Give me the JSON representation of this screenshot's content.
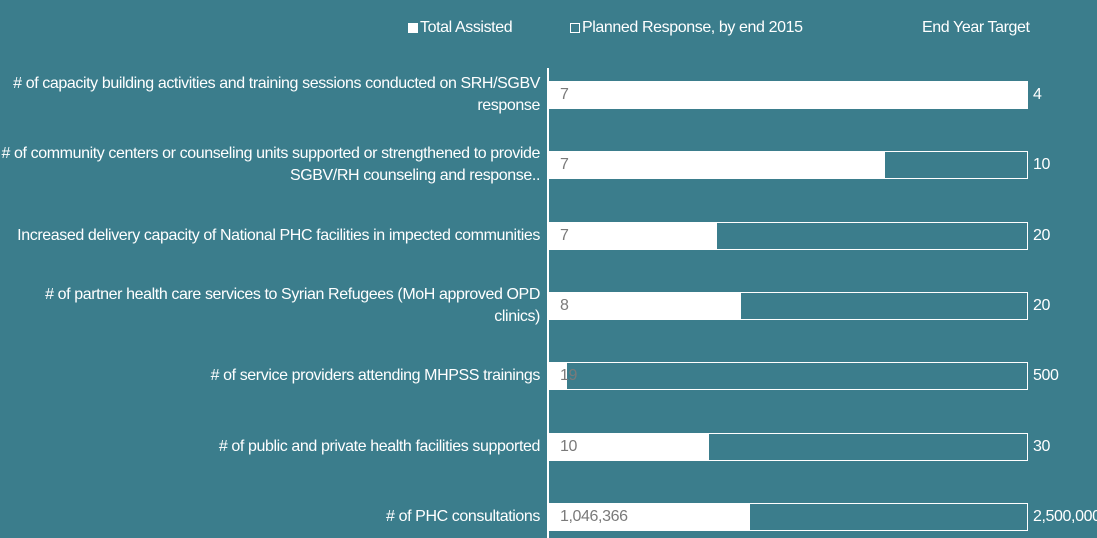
{
  "chart_data": {
    "type": "progress-bar",
    "categories": [
      "# of capacity building activities and training sessions conducted on SRH/SGBV response",
      "# of community centers or counseling units supported or strengthened to provide SGBV/RH counseling and response..",
      "Increased delivery capacity of National PHC facilities in impected communities",
      "# of partner health care services to Syrian Refugees  (MoH approved OPD clinics)",
      "# of service providers attending MHPSS trainings",
      "# of  public and private health facilities supported",
      "# of PHC consultations"
    ],
    "series": [
      {
        "name": "Total Assisted",
        "color": "#ffffff",
        "values": [
          7,
          7,
          7,
          8,
          19,
          10,
          1046366
        ],
        "value_labels": [
          "7",
          "7",
          "7",
          "8",
          "19",
          "10",
          "1,046,366"
        ]
      },
      {
        "name": "Planned Response, by end 2015",
        "color": "#ffffff",
        "values": [
          4,
          10,
          20,
          20,
          500,
          30,
          2500000
        ]
      },
      {
        "name": "End Year Target",
        "color": "#ffffff",
        "values": [
          4,
          10,
          20,
          20,
          500,
          30,
          2500000
        ],
        "value_labels": [
          "4",
          "10",
          "20",
          "20",
          "500",
          "30",
          "2,500,000"
        ]
      }
    ]
  }
}
